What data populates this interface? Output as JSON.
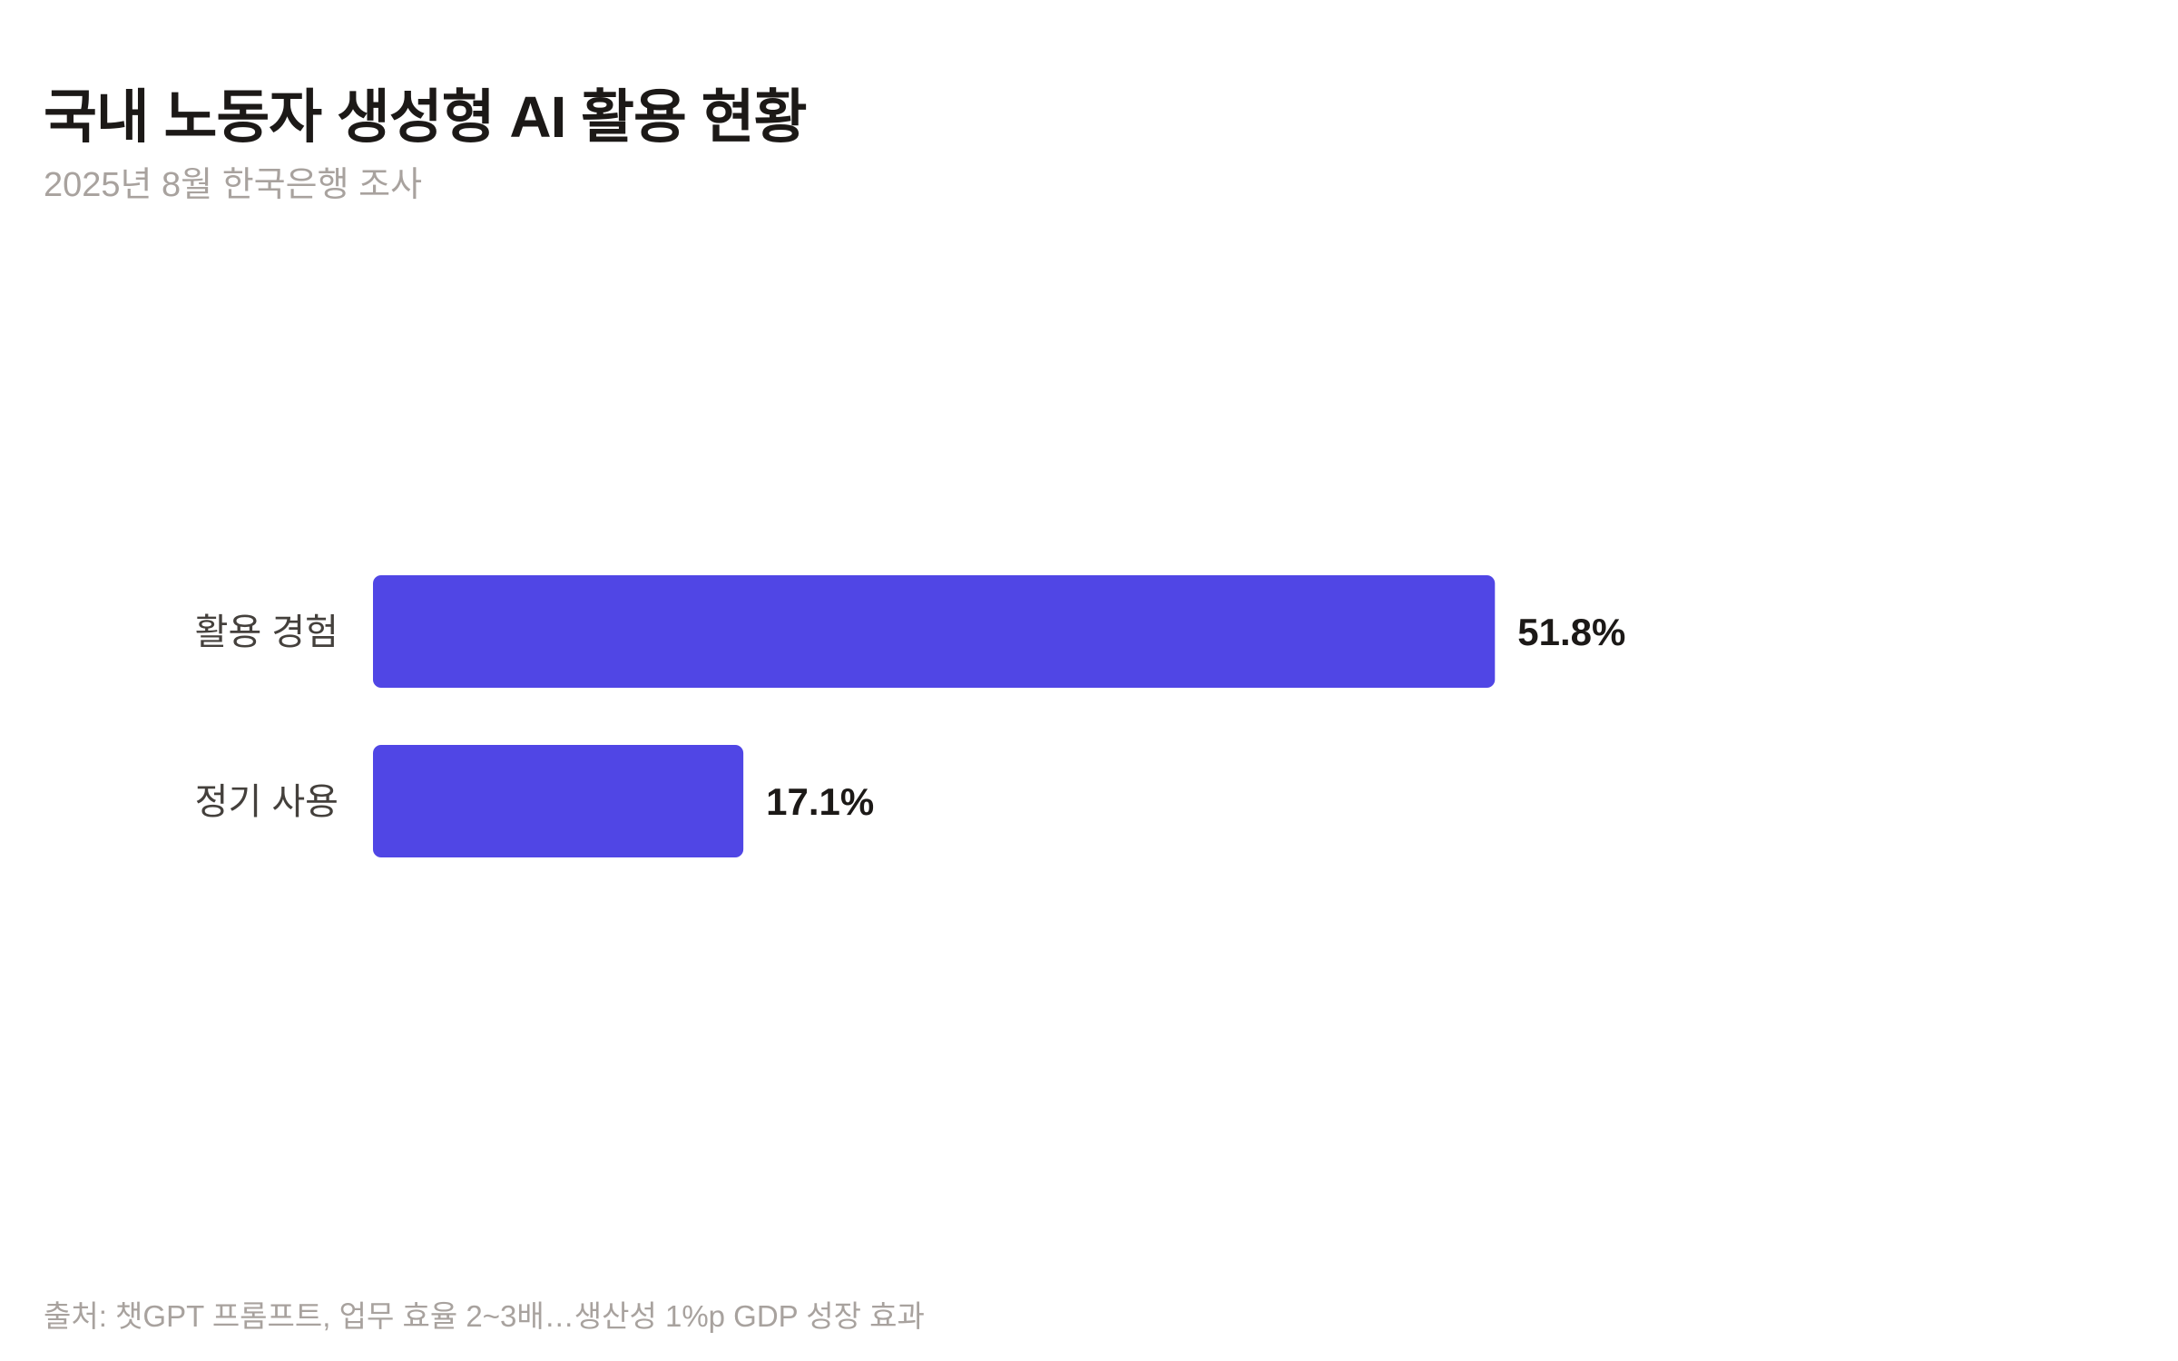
{
  "chart_data": {
    "type": "bar",
    "orientation": "horizontal",
    "title": "국내 노동자 생성형 AI 활용 현황",
    "subtitle": "2025년 8월 한국은행 조사",
    "categories": [
      "활용 경험",
      "정기 사용"
    ],
    "values": [
      51.8,
      17.1
    ],
    "value_labels": [
      "51.8%",
      "17.1%"
    ],
    "xlabel": "",
    "ylabel": "",
    "xlim": [
      0,
      75
    ],
    "grid": false,
    "bar_color": "#5046e5",
    "source": "출처: 챗GPT 프롬프트, 업무 효율 2~3배…생산성 1%p GDP 성장 효과"
  }
}
